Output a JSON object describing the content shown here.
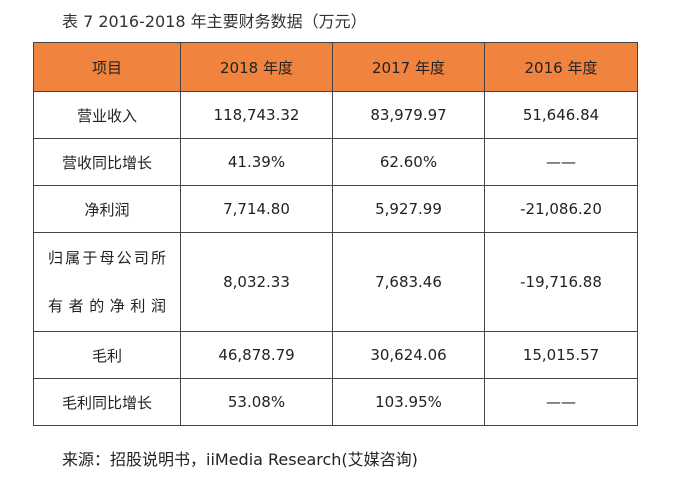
{
  "caption": "表 7   2016-2018 年主要财务数据（万元）",
  "table": {
    "headers": [
      "项目",
      "2018 年度",
      "2017 年度",
      "2016 年度"
    ],
    "rows": [
      {
        "label": "营业收入",
        "values": [
          "118,743.32",
          "83,979.97",
          "51,646.84"
        ]
      },
      {
        "label": "营收同比增长",
        "values": [
          "41.39%",
          "62.60%",
          "——"
        ]
      },
      {
        "label": "净利润",
        "values": [
          "7,714.80",
          "5,927.99",
          "-21,086.20"
        ]
      },
      {
        "label": "归属于母公司所有者的净利润",
        "values": [
          "8,032.33",
          "7,683.46",
          "-19,716.88"
        ]
      },
      {
        "label": "毛利",
        "values": [
          "46,878.79",
          "30,624.06",
          "15,015.57"
        ]
      },
      {
        "label": "毛利同比增长",
        "values": [
          "53.08%",
          "103.95%",
          "——"
        ]
      }
    ]
  },
  "source": "来源：招股说明书，iiMedia Research(艾媒咨询)",
  "colors": {
    "header_bg": "#f0843e",
    "border": "#444444"
  }
}
